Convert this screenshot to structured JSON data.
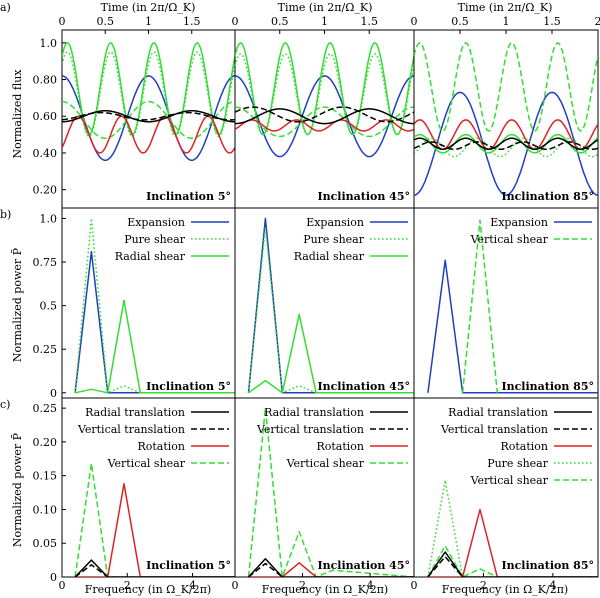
{
  "figure": {
    "row_letters": [
      "a)",
      "b)",
      "c)"
    ],
    "top_axis_label": "Time (in 2π/Ω_K)",
    "bottom_axis_label": "Frequency (in Ω_K/2π)",
    "row_ylabels": [
      "Normalized flux",
      "Normalized power P̃",
      "Normalized power P̃"
    ],
    "inclinations": [
      "Inclination 5°",
      "Inclination 45°",
      "Inclination 85°"
    ]
  },
  "colors": {
    "expansion": "#1f3fc0",
    "radial_shear": "#33dd33",
    "vertical_shear": "#33dd33",
    "pure_shear": "#33dd33",
    "rotation": "#dd2222",
    "radial_translation": "#000000",
    "vertical_translation": "#000000"
  },
  "chart_data": [
    {
      "type": "line",
      "panel": "a1",
      "title": "Inclination 5°",
      "xlabel": "Time (in 2π/Ω_K)",
      "ylabel": "Normalized flux",
      "xlim": [
        0,
        2
      ],
      "ylim": [
        0.1,
        1.07
      ],
      "x_ticks": [
        "0",
        "0.5",
        "1",
        "1.5"
      ],
      "y_ticks": [
        "0.20",
        "0.40",
        "0.60",
        "0.80",
        "1.0"
      ],
      "series": [
        {
          "name": "Expansion",
          "style": "solid",
          "color": "#1f3fc0",
          "mean": 0.59,
          "amp": 0.23,
          "cycles": 1.0,
          "phase": 0.25
        },
        {
          "name": "Pure shear",
          "style": "dotted",
          "color": "#33dd33",
          "mean": 0.72,
          "amp": 0.23,
          "cycles": 2.0,
          "phase": 0.125
        },
        {
          "name": "Radial shear",
          "style": "solid",
          "color": "#33dd33",
          "mean": 0.75,
          "amp": 0.25,
          "cycles": 2.0,
          "phase": 0.125
        },
        {
          "name": "Vertical shear",
          "style": "dashed",
          "color": "#33dd33",
          "mean": 0.58,
          "amp": 0.1,
          "cycles": 1.0,
          "phase": 0.25
        },
        {
          "name": "Rotation",
          "style": "solid",
          "color": "#dd2222",
          "mean": 0.5,
          "amp": 0.1,
          "cycles": 2.0,
          "phase": -0.125
        },
        {
          "name": "Radial translation",
          "style": "solid",
          "color": "#000000",
          "mean": 0.6,
          "amp": 0.03,
          "cycles": 1.0,
          "phase": -0.25
        },
        {
          "name": "Vertical translation",
          "style": "dashed",
          "color": "#000000",
          "mean": 0.6,
          "amp": 0.02,
          "cycles": 1.0,
          "phase": -0.2
        }
      ]
    },
    {
      "type": "line",
      "panel": "a2",
      "title": "Inclination 45°",
      "xlabel": "Time (in 2π/Ω_K)",
      "ylabel": "",
      "xlim": [
        0,
        2
      ],
      "ylim": [
        0.1,
        1.07
      ],
      "x_ticks": [
        "0",
        "0.5",
        "1",
        "1.5"
      ],
      "y_ticks": [],
      "series": [
        {
          "name": "Expansion",
          "style": "solid",
          "color": "#1f3fc0",
          "mean": 0.6,
          "amp": 0.22,
          "cycles": 1.0,
          "phase": 0.25
        },
        {
          "name": "Pure shear",
          "style": "dotted",
          "color": "#33dd33",
          "mean": 0.72,
          "amp": 0.22,
          "cycles": 2.0,
          "phase": 0.125
        },
        {
          "name": "Radial shear",
          "style": "solid",
          "color": "#33dd33",
          "mean": 0.75,
          "amp": 0.25,
          "cycles": 2.0,
          "phase": 0.125
        },
        {
          "name": "Vertical shear",
          "style": "dashed",
          "color": "#33dd33",
          "mean": 0.57,
          "amp": 0.08,
          "cycles": 1.0,
          "phase": 0.25
        },
        {
          "name": "Rotation",
          "style": "solid",
          "color": "#dd2222",
          "mean": 0.55,
          "amp": 0.03,
          "cycles": 2.0,
          "phase": -0.125
        },
        {
          "name": "Radial translation",
          "style": "solid",
          "color": "#000000",
          "mean": 0.6,
          "amp": 0.04,
          "cycles": 1.0,
          "phase": -0.25
        },
        {
          "name": "Vertical translation",
          "style": "dashed",
          "color": "#000000",
          "mean": 0.61,
          "amp": 0.04,
          "cycles": 1.0,
          "phase": 0.05
        }
      ]
    },
    {
      "type": "line",
      "panel": "a3",
      "title": "Inclination 85°",
      "xlabel": "Time (in 2π/Ω_K)",
      "ylabel": "",
      "xlim": [
        0,
        2
      ],
      "ylim": [
        0.1,
        1.07
      ],
      "x_ticks": [
        "0",
        "0.5",
        "1",
        "1.5",
        "2"
      ],
      "y_ticks": [],
      "series": [
        {
          "name": "Expansion",
          "style": "solid",
          "color": "#1f3fc0",
          "mean": 0.45,
          "amp": 0.28,
          "cycles": 1.0,
          "phase": -0.25
        },
        {
          "name": "Vertical shear",
          "style": "dashed",
          "color": "#33dd33",
          "mean": 0.76,
          "amp": 0.24,
          "cycles": 2.0,
          "phase": 0.125
        },
        {
          "name": "Rotation",
          "style": "solid",
          "color": "#dd2222",
          "mean": 0.5,
          "amp": 0.08,
          "cycles": 2.0,
          "phase": 0.125
        },
        {
          "name": "Pure shear",
          "style": "dotted",
          "color": "#33dd33",
          "mean": 0.43,
          "amp": 0.05,
          "cycles": 2.0,
          "phase": -0.125
        },
        {
          "name": "Radial shear",
          "style": "solid",
          "color": "#33dd33",
          "mean": 0.45,
          "amp": 0.05,
          "cycles": 2.0,
          "phase": 0.125
        },
        {
          "name": "Radial translation",
          "style": "solid",
          "color": "#000000",
          "mean": 0.45,
          "amp": 0.03,
          "cycles": 2.0,
          "phase": 0.125
        },
        {
          "name": "Vertical translation",
          "style": "dashed",
          "color": "#000000",
          "mean": 0.44,
          "amp": 0.02,
          "cycles": 2.0,
          "phase": -0.125
        }
      ]
    },
    {
      "type": "line",
      "panel": "b1",
      "title": "Inclination 5°",
      "xlabel": "",
      "ylabel": "Normalized power P̃",
      "xlim": [
        0,
        5.3
      ],
      "ylim": [
        -0.03,
        1.06
      ],
      "x_ticks": [],
      "y_ticks": [
        "0",
        "0.25",
        "0.5",
        "0.75",
        "1.0"
      ],
      "legend": [
        "Expansion",
        "Pure shear",
        "Radial shear"
      ],
      "series": [
        {
          "name": "Expansion",
          "style": "solid",
          "color": "#1f3fc0",
          "x": [
            0.4,
            0.9,
            1.4,
            5.3
          ],
          "y": [
            0,
            0.81,
            0,
            0
          ]
        },
        {
          "name": "Pure shear",
          "style": "dotted",
          "color": "#33dd33",
          "x": [
            0.4,
            0.9,
            1.4,
            1.9,
            2.4,
            5.3
          ],
          "y": [
            0,
            1.0,
            0,
            0.04,
            0,
            0
          ]
        },
        {
          "name": "Radial shear",
          "style": "solid",
          "color": "#33dd33",
          "x": [
            0.4,
            0.9,
            1.4,
            1.9,
            2.4,
            5.3
          ],
          "y": [
            0,
            0.02,
            0,
            0.53,
            0,
            0
          ]
        }
      ]
    },
    {
      "type": "line",
      "panel": "b2",
      "title": "Inclination 45°",
      "xlabel": "",
      "ylabel": "",
      "xlim": [
        0,
        5.3
      ],
      "ylim": [
        -0.03,
        1.06
      ],
      "x_ticks": [],
      "y_ticks": [],
      "legend": [
        "Expansion",
        "Pure shear",
        "Radial shear"
      ],
      "series": [
        {
          "name": "Expansion",
          "style": "solid",
          "color": "#1f3fc0",
          "x": [
            0.4,
            0.9,
            1.4,
            5.3
          ],
          "y": [
            0,
            1.0,
            0,
            0
          ]
        },
        {
          "name": "Pure shear",
          "style": "dotted",
          "color": "#33dd33",
          "x": [
            0.4,
            0.9,
            1.4,
            1.9,
            2.4,
            5.3
          ],
          "y": [
            0,
            0.95,
            0,
            0.04,
            0,
            0
          ]
        },
        {
          "name": "Radial shear",
          "style": "solid",
          "color": "#33dd33",
          "x": [
            0.4,
            0.9,
            1.4,
            1.9,
            2.4,
            5.3
          ],
          "y": [
            0,
            0.07,
            0,
            0.45,
            0,
            0
          ]
        }
      ]
    },
    {
      "type": "line",
      "panel": "b3",
      "title": "Inclination 85°",
      "xlabel": "",
      "ylabel": "",
      "xlim": [
        0,
        5.3
      ],
      "ylim": [
        -0.03,
        1.06
      ],
      "x_ticks": [],
      "y_ticks": [],
      "legend": [
        "Expansion",
        "Vertical shear"
      ],
      "series": [
        {
          "name": "Expansion",
          "style": "solid",
          "color": "#1f3fc0",
          "x": [
            0.4,
            0.9,
            1.4,
            5.3
          ],
          "y": [
            0,
            0.76,
            0,
            0
          ]
        },
        {
          "name": "Vertical shear",
          "style": "dashed",
          "color": "#33dd33",
          "x": [
            1.4,
            1.9,
            2.4
          ],
          "y": [
            0,
            0.99,
            0
          ]
        }
      ]
    },
    {
      "type": "line",
      "panel": "c1",
      "title": "Inclination 5°",
      "xlabel": "Frequency (in Ω_K/2π)",
      "ylabel": "Normalized power P̃",
      "xlim": [
        0,
        5.3
      ],
      "ylim": [
        0,
        0.265
      ],
      "x_ticks": [
        "0",
        "2",
        "4"
      ],
      "y_ticks": [
        "0",
        "0.05",
        "0.10",
        "0.15",
        "0.20",
        "0.25"
      ],
      "legend": [
        "Radial translation",
        "Vertical translation",
        "Rotation",
        "Vertical shear"
      ],
      "series": [
        {
          "name": "Vertical shear",
          "style": "dashed",
          "color": "#33dd33",
          "x": [
            0.4,
            0.9,
            1.4,
            5.3
          ],
          "y": [
            0,
            0.168,
            0,
            0
          ]
        },
        {
          "name": "Rotation",
          "style": "solid",
          "color": "#dd2222",
          "x": [
            0.4,
            1.4,
            1.9,
            2.4,
            5.3
          ],
          "y": [
            0,
            0,
            0.138,
            0,
            0
          ]
        },
        {
          "name": "Radial translation",
          "style": "solid",
          "color": "#000000",
          "x": [
            0.4,
            0.9,
            1.4,
            5.3
          ],
          "y": [
            0,
            0.025,
            0,
            0
          ]
        },
        {
          "name": "Vertical translation",
          "style": "dashed",
          "color": "#000000",
          "x": [
            0.4,
            0.9,
            1.4
          ],
          "y": [
            0,
            0.018,
            0
          ]
        }
      ]
    },
    {
      "type": "line",
      "panel": "c2",
      "title": "Inclination 45°",
      "xlabel": "Frequency (in Ω_K/2π)",
      "ylabel": "",
      "xlim": [
        0,
        5.3
      ],
      "ylim": [
        0,
        0.265
      ],
      "x_ticks": [
        "0",
        "2",
        "4"
      ],
      "y_ticks": [],
      "legend": [
        "Radial translation",
        "Vertical translation",
        "Rotation",
        "Vertical shear"
      ],
      "series": [
        {
          "name": "Vertical shear",
          "style": "dashed",
          "color": "#33dd33",
          "x": [
            0.4,
            0.9,
            1.4,
            1.9,
            2.4,
            2.9,
            5.3
          ],
          "y": [
            0,
            0.25,
            0,
            0.067,
            0,
            0.01,
            0
          ]
        },
        {
          "name": "Rotation",
          "style": "solid",
          "color": "#dd2222",
          "x": [
            0.4,
            1.4,
            1.9,
            2.4,
            5.3
          ],
          "y": [
            0,
            0,
            0.021,
            0,
            0
          ]
        },
        {
          "name": "Radial translation",
          "style": "solid",
          "color": "#000000",
          "x": [
            0.4,
            0.9,
            1.4,
            5.3
          ],
          "y": [
            0,
            0.027,
            0,
            0
          ]
        },
        {
          "name": "Vertical translation",
          "style": "dashed",
          "color": "#000000",
          "x": [
            0.4,
            0.9,
            1.4
          ],
          "y": [
            0,
            0.02,
            0
          ]
        }
      ]
    },
    {
      "type": "line",
      "panel": "c3",
      "title": "Inclination 85°",
      "xlabel": "Frequency (in Ω_K/2π)",
      "ylabel": "",
      "xlim": [
        0,
        5.3
      ],
      "ylim": [
        0,
        0.265
      ],
      "x_ticks": [
        "0",
        "2",
        "4"
      ],
      "y_ticks": [],
      "legend": [
        "Radial translation",
        "Vertical translation",
        "Rotation",
        "Pure shear",
        "Vertical shear"
      ],
      "series": [
        {
          "name": "Pure shear",
          "style": "dotted",
          "color": "#33dd33",
          "x": [
            0.4,
            0.9,
            1.4,
            5.3
          ],
          "y": [
            0,
            0.143,
            0,
            0
          ]
        },
        {
          "name": "Vertical shear",
          "style": "dashed",
          "color": "#33dd33",
          "x": [
            0.4,
            0.9,
            1.4,
            1.9,
            2.4,
            5.3
          ],
          "y": [
            0,
            0.046,
            0,
            0.012,
            0,
            0
          ]
        },
        {
          "name": "Rotation",
          "style": "solid",
          "color": "#dd2222",
          "x": [
            0.4,
            1.4,
            1.9,
            2.4,
            5.3
          ],
          "y": [
            0,
            0,
            0.1,
            0,
            0
          ]
        },
        {
          "name": "Radial translation",
          "style": "solid",
          "color": "#000000",
          "x": [
            0.4,
            0.9,
            1.4,
            5.3
          ],
          "y": [
            0,
            0.037,
            0,
            0
          ]
        },
        {
          "name": "Vertical translation",
          "style": "dashed",
          "color": "#000000",
          "x": [
            0.4,
            0.9,
            1.4
          ],
          "y": [
            0,
            0.03,
            0
          ]
        }
      ]
    }
  ]
}
